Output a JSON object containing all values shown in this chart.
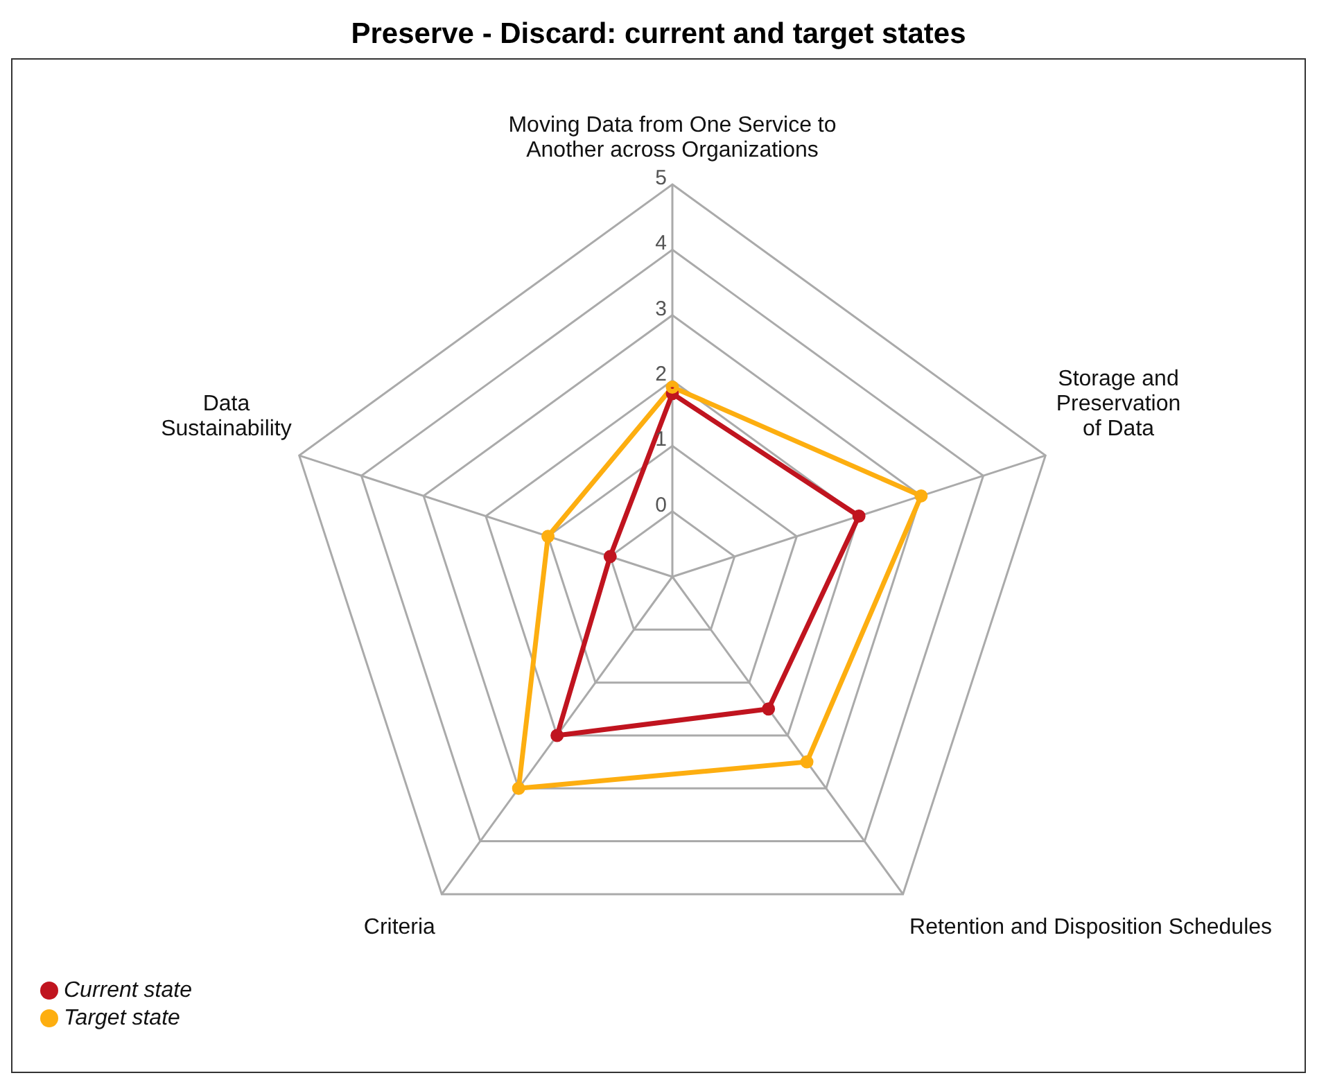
{
  "chart_data": {
    "type": "radar",
    "title": "Preserve - Discard: current and target states",
    "categories": [
      "Moving Data from One Service to Another across Organizations",
      "Storage and Preservation of Data",
      "Retention and Disposition Schedules",
      "Criteria",
      "Data Sustainability"
    ],
    "series": [
      {
        "name": "Current state",
        "color": "#c0141f",
        "values": [
          1.8,
          2.0,
          1.5,
          2.0,
          0
        ]
      },
      {
        "name": "Target state",
        "color": "#fdae10",
        "values": [
          1.9,
          3.0,
          2.5,
          3.0,
          1.0
        ]
      }
    ],
    "ylim": [
      -1,
      5
    ],
    "yticks": [
      0,
      1,
      2,
      3,
      4,
      5
    ],
    "grid": true,
    "legend": "bottom left",
    "marker": "circle",
    "line_style": "solid"
  }
}
